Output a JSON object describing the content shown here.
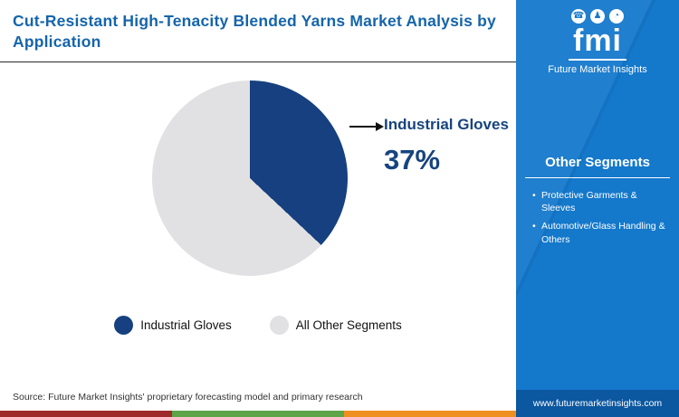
{
  "header": {
    "title": "Cut-Resistant High-Tenacity Blended Yarns Market Analysis by Application"
  },
  "chart_data": {
    "type": "pie",
    "title": "Cut-Resistant High-Tenacity Blended Yarns Market Analysis by Application",
    "slices": [
      {
        "label": "Industrial Gloves",
        "value": 37,
        "color": "#16407f"
      },
      {
        "label": "All Other Segments",
        "value": 63,
        "color": "#e1e1e3"
      }
    ],
    "callout": {
      "label": "Industrial Gloves",
      "value": "37%"
    },
    "legend_position": "bottom"
  },
  "source": "Source: Future Market Insights' proprietary forecasting model and primary research",
  "sidebar": {
    "logo_text": "fmi",
    "brand": "Future Market Insights",
    "heading": "Other Segments",
    "items": [
      "Protective Garments & Sleeves",
      "Automotive/Glass Handling & Others"
    ],
    "url": "www.futuremarketinsights.com"
  },
  "colors": {
    "title_blue": "#1565ab",
    "sidebar_blue": "#1478cb",
    "sidebar_footer_blue": "#0b57a0",
    "stripe": [
      "#9e2a2b",
      "#5da547",
      "#ef8f1f"
    ]
  }
}
